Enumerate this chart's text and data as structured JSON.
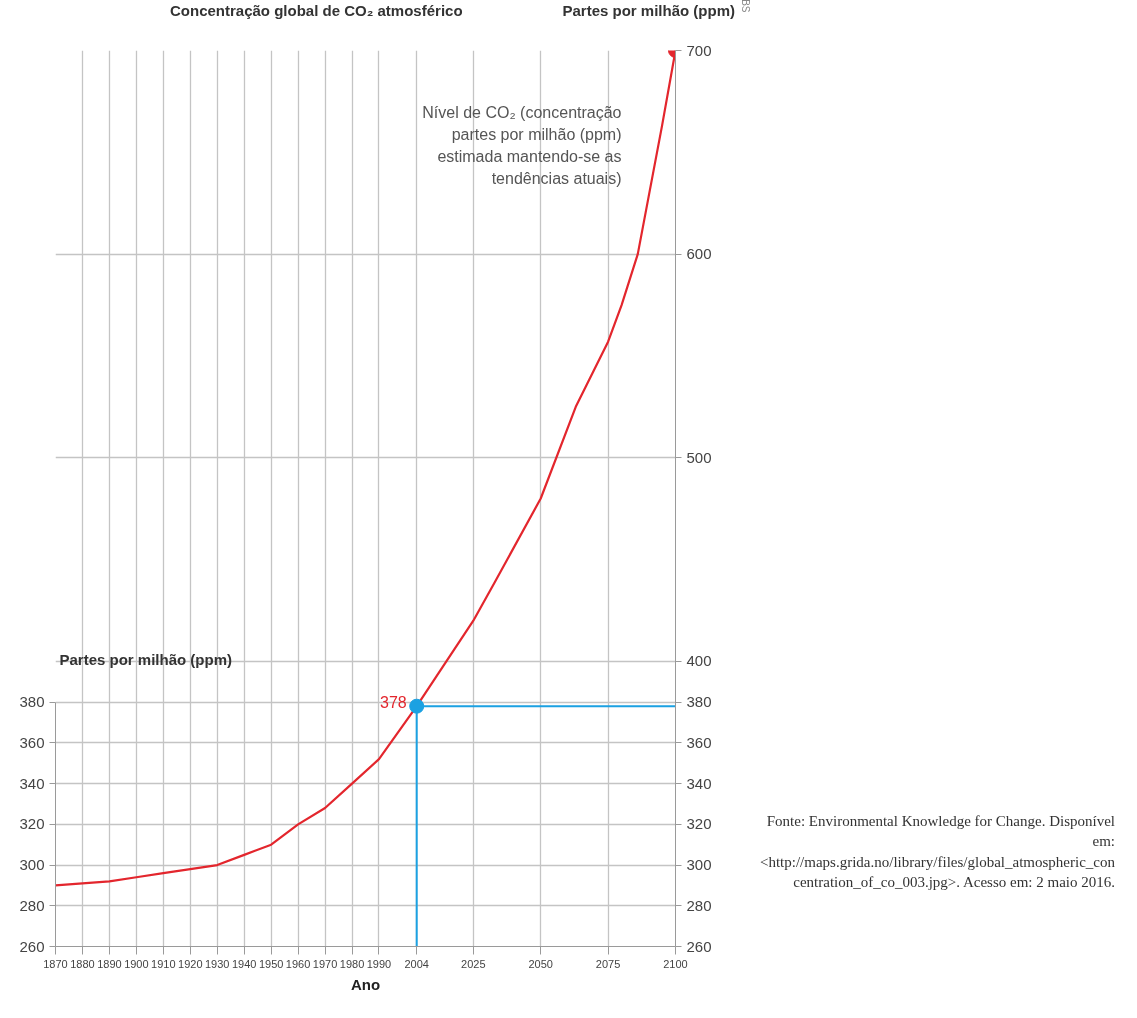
{
  "chart_data": {
    "type": "line",
    "title": "Concentração global de CO₂ atmosférico",
    "xlabel": "Ano",
    "ylabel": "Partes por milhão (ppm)",
    "y2label": "Partes por milhão (ppm)",
    "x": [
      1870,
      1880,
      1890,
      1900,
      1910,
      1920,
      1930,
      1940,
      1950,
      1960,
      1970,
      1980,
      1990,
      2004,
      2025,
      2033,
      2050,
      2063,
      2075,
      2080,
      2086,
      2090,
      2095,
      2100
    ],
    "series": [
      {
        "color": "#e3262d",
        "values": [
          290,
          291,
          292,
          294,
          296,
          298,
          300,
          305,
          310,
          320,
          328,
          340,
          352,
          378,
          420,
          439,
          480,
          525,
          557,
          575,
          600,
          628,
          663,
          700
        ]
      },
      {
        "type": "scatter",
        "color": "#1ba1e2",
        "x": [
          2004
        ],
        "values": [
          378
        ],
        "value_labels": [
          "378"
        ]
      },
      {
        "type": "scatter",
        "color": "#e3262d",
        "x": [
          2100
        ],
        "values": [
          700
        ]
      }
    ],
    "xlim": [
      1870,
      2100
    ],
    "xticks": [
      1870,
      1880,
      1890,
      1900,
      1910,
      1920,
      1930,
      1940,
      1950,
      1960,
      1970,
      1980,
      1990,
      2004,
      2025,
      2050,
      2075,
      2100
    ],
    "ylim": [
      260,
      700
    ],
    "yticks": [
      260,
      280,
      300,
      320,
      340,
      360,
      380
    ],
    "y2lim": [
      260,
      700
    ],
    "y2ticks": [
      260,
      280,
      300,
      320,
      340,
      360,
      380,
      400,
      500,
      600,
      700
    ],
    "grid": true,
    "ref_lines": [
      {
        "axis": "x",
        "value": 2004,
        "color": "#1ba1e2"
      },
      {
        "axis": "y2",
        "value": 378,
        "color": "#1ba1e2"
      }
    ],
    "annotations": [
      "Nível de CO₂ (concentração partes por milhão (ppm) estimada mantendo-se as tendências atuais)",
      "BS",
      "Fonte: Environmental Knowledge for Change. Disponível em: <http://maps.grida.no/library/files/global_atmospheric_concentration_of_co_003.jpg>. Acesso em: 2 maio 2016."
    ]
  }
}
